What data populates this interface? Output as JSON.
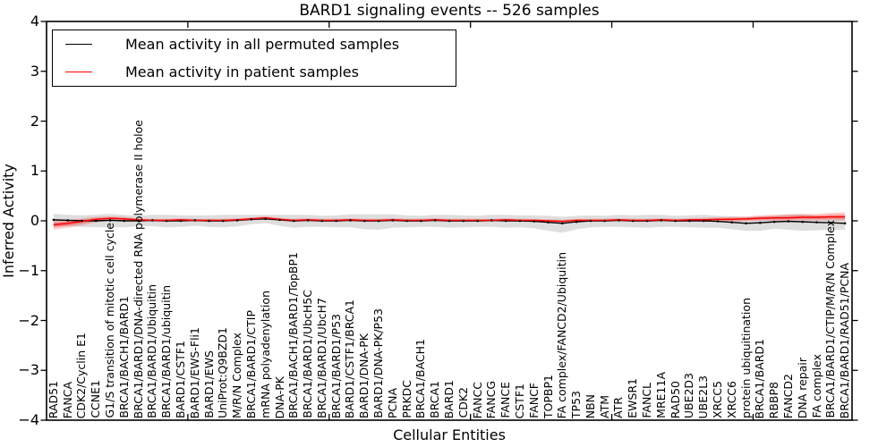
{
  "title": "BARD1 signaling events -- 526 samples",
  "axes": {
    "x_label": "Cellular Entities",
    "y_label": "Inferred Activity",
    "y_tick_labels": [
      "4",
      "3",
      "2",
      "1",
      "0",
      "−1",
      "−2",
      "−3",
      "−4"
    ]
  },
  "legend": {
    "items": [
      {
        "label": "Mean activity in all permuted samples",
        "color": "#000000"
      },
      {
        "label": "Mean activity in patient samples",
        "color": "#ff0000"
      }
    ],
    "position": "upper left"
  },
  "chart_data": {
    "type": "line",
    "title": "BARD1 signaling events -- 526 samples",
    "xlabel": "Cellular Entities",
    "ylabel": "Inferred Activity",
    "ylim": [
      -4,
      4
    ],
    "xlim": [
      0,
      57
    ],
    "grid": false,
    "legend_position": "upper left",
    "y_ticks": [
      4,
      3,
      2,
      1,
      0,
      -1,
      -2,
      -3,
      -4
    ],
    "y_tick_labels": [
      "4",
      "3",
      "2",
      "1",
      "0",
      "−1",
      "−2",
      "−3",
      "−4"
    ],
    "x_tick_units": [
      10,
      20,
      30,
      40,
      50
    ],
    "categories": [
      "RAD51",
      "FANCA",
      "CDK2/Cyclin E1",
      "CCNE1",
      "G1/S transition of mitotic cell cycle",
      "BRCA1/BACH1/BARD1",
      "BRCA1/BARD1/DNA-directed RNA polymerase II holoe",
      "BRCA1/BARD1/Ubiquitin",
      "BRCA1/BARD1/ubiquitin",
      "BARD1/CSTF1",
      "BARD1/EWS-Fli1",
      "BARD1/EWS",
      "UniProt:Q9BZD1",
      "M/R/N Complex",
      "BRCA1/BARD1/CTIP",
      "mRNA polyadenylation",
      "DNA-PK",
      "BRCA1/BACH1/BARD1/TopBP1",
      "BRCA1/BARD1/UbcH5C",
      "BRCA1/BARD1/UbcH7",
      "BRCA1/BARD1/P53",
      "BARD1/CSTF1/BRCA1",
      "BARD1/DNA-PK",
      "BARD1/DNA-PK/P53",
      "PCNA",
      "PRKDC",
      "BRCA1/BACH1",
      "BRCA1",
      "BARD1",
      "CDK2",
      "FANCC",
      "FANCG",
      "FANCE",
      "CSTF1",
      "FANCF",
      "TOPBP1",
      "FA complex/FANCD2/Ubiquitin",
      "TP53",
      "NBN",
      "ATM",
      "ATR",
      "EWSR1",
      "FANCL",
      "MRE11A",
      "RAD50",
      "UBE2D3",
      "UBE2L3",
      "XRCC5",
      "XRCC6",
      "protein ubiquitination",
      "BRCA1/BARD1",
      "RBBP8",
      "FANCD2",
      "DNA repair",
      "FA complex",
      "BRCA1/BARD1/CTIP/M/R/N Complex",
      "BRCA1/BARD1/RAD51/PCNA"
    ],
    "series": [
      {
        "name": "Mean activity in all permuted samples",
        "color": "#000000",
        "band_color": "#aaaaaa",
        "values": [
          0.02,
          0.01,
          0.0,
          0.0,
          0.01,
          0.0,
          0.0,
          0.01,
          0.0,
          0.0,
          0.01,
          0.0,
          0.0,
          0.01,
          0.03,
          0.04,
          0.02,
          0.0,
          0.01,
          0.0,
          0.0,
          0.01,
          0.0,
          0.0,
          0.01,
          0.0,
          0.0,
          0.01,
          0.0,
          0.0,
          0.0,
          0.01,
          0.0,
          0.0,
          -0.01,
          -0.03,
          -0.05,
          -0.02,
          0.0,
          0.0,
          0.01,
          0.0,
          0.0,
          0.01,
          0.0,
          0.0,
          0.0,
          -0.01,
          -0.03,
          -0.05,
          -0.04,
          -0.02,
          -0.01,
          -0.02,
          -0.03,
          -0.04,
          -0.05
        ],
        "band_upper": [
          0.12,
          0.11,
          0.11,
          0.12,
          0.13,
          0.12,
          0.1,
          0.11,
          0.12,
          0.11,
          0.1,
          0.11,
          0.12,
          0.11,
          0.09,
          0.08,
          0.1,
          0.12,
          0.11,
          0.1,
          0.11,
          0.12,
          0.13,
          0.13,
          0.12,
          0.11,
          0.1,
          0.11,
          0.12,
          0.11,
          0.1,
          0.11,
          0.12,
          0.11,
          0.12,
          0.13,
          0.13,
          0.12,
          0.11,
          0.1,
          0.11,
          0.11,
          0.12,
          0.11,
          0.1,
          0.11,
          0.12,
          0.11,
          0.12,
          0.12,
          0.13,
          0.12,
          0.14,
          0.15,
          0.13,
          0.12,
          0.11
        ],
        "band_lower": [
          0.13,
          0.12,
          0.12,
          0.13,
          0.14,
          0.13,
          0.11,
          0.12,
          0.13,
          0.12,
          0.11,
          0.12,
          0.13,
          0.12,
          0.1,
          0.09,
          0.12,
          0.14,
          0.13,
          0.12,
          0.13,
          0.14,
          0.17,
          0.18,
          0.15,
          0.13,
          0.12,
          0.13,
          0.14,
          0.13,
          0.12,
          0.13,
          0.14,
          0.13,
          0.14,
          0.17,
          0.19,
          0.15,
          0.13,
          0.12,
          0.13,
          0.13,
          0.14,
          0.13,
          0.12,
          0.13,
          0.14,
          0.13,
          0.14,
          0.15,
          0.16,
          0.14,
          0.17,
          0.18,
          0.16,
          0.14,
          0.13
        ]
      },
      {
        "name": "Mean activity in patient samples",
        "color": "#ff0000",
        "band_color": "#ff0000",
        "values": [
          -0.08,
          -0.05,
          -0.01,
          0.03,
          0.05,
          0.04,
          0.02,
          0.01,
          0.01,
          0.02,
          0.01,
          0.01,
          0.01,
          0.02,
          0.04,
          0.06,
          0.03,
          0.01,
          0.02,
          0.01,
          0.01,
          0.02,
          0.01,
          0.01,
          0.02,
          0.01,
          0.01,
          0.02,
          0.01,
          0.01,
          0.01,
          0.01,
          0.02,
          0.01,
          0.01,
          0.0,
          -0.01,
          0.01,
          0.01,
          0.01,
          0.02,
          0.01,
          0.01,
          0.02,
          0.01,
          0.02,
          0.02,
          0.03,
          0.03,
          0.04,
          0.05,
          0.06,
          0.06,
          0.07,
          0.07,
          0.08,
          0.08
        ],
        "band_upper": [
          0.08,
          0.07,
          0.06,
          0.05,
          0.04,
          0.04,
          0.03,
          0.03,
          0.03,
          0.03,
          0.03,
          0.03,
          0.03,
          0.03,
          0.03,
          0.03,
          0.03,
          0.03,
          0.03,
          0.03,
          0.03,
          0.03,
          0.03,
          0.03,
          0.03,
          0.03,
          0.03,
          0.03,
          0.03,
          0.03,
          0.03,
          0.03,
          0.03,
          0.03,
          0.03,
          0.03,
          0.03,
          0.03,
          0.03,
          0.03,
          0.03,
          0.03,
          0.03,
          0.03,
          0.03,
          0.03,
          0.04,
          0.04,
          0.05,
          0.05,
          0.06,
          0.06,
          0.07,
          0.07,
          0.07,
          0.08,
          0.09
        ],
        "band_lower": [
          0.1,
          0.09,
          0.08,
          0.06,
          0.05,
          0.04,
          0.03,
          0.03,
          0.03,
          0.03,
          0.03,
          0.03,
          0.03,
          0.03,
          0.03,
          0.03,
          0.03,
          0.03,
          0.03,
          0.03,
          0.03,
          0.03,
          0.03,
          0.03,
          0.03,
          0.03,
          0.03,
          0.03,
          0.03,
          0.03,
          0.03,
          0.03,
          0.03,
          0.03,
          0.03,
          0.03,
          0.03,
          0.03,
          0.03,
          0.03,
          0.03,
          0.03,
          0.03,
          0.03,
          0.03,
          0.03,
          0.04,
          0.04,
          0.05,
          0.05,
          0.05,
          0.06,
          0.06,
          0.06,
          0.07,
          0.07,
          0.08
        ]
      }
    ]
  }
}
